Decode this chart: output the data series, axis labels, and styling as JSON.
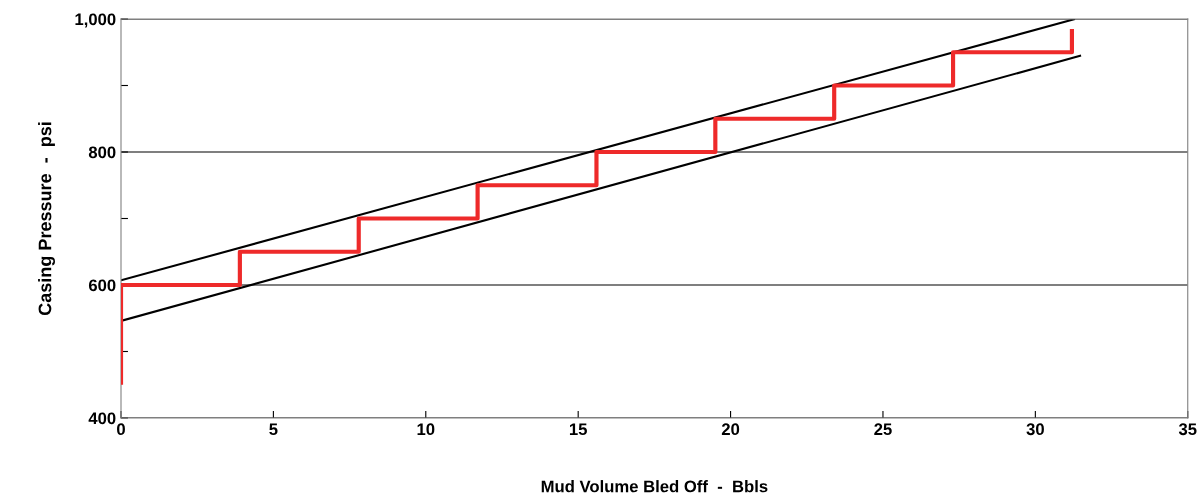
{
  "chart_data": {
    "type": "line",
    "xlabel": "Mud Volume Bled Off  -  Bbls",
    "ylabel": "Casing Pressure  -  psi",
    "xlim": [
      0,
      35
    ],
    "xticks": [
      0,
      5,
      10,
      15,
      20,
      25,
      30,
      35
    ],
    "ylim": [
      400,
      1000
    ],
    "yticks": [
      {
        "value": 400,
        "label": "400"
      },
      {
        "value": 500,
        "label": null
      },
      {
        "value": 600,
        "label": "600"
      },
      {
        "value": 700,
        "label": null
      },
      {
        "value": 800,
        "label": "800"
      },
      {
        "value": 900,
        "label": null
      },
      {
        "value": 1000,
        "label": "1,000"
      }
    ],
    "grid": "y",
    "series": [
      {
        "color": "#ee2a2a",
        "x": [
          0,
          0,
          3.9,
          3.9,
          7.8,
          7.8,
          11.7,
          11.7,
          15.6,
          15.6,
          19.5,
          19.5,
          23.4,
          23.4,
          27.3,
          27.3,
          31.2,
          31.2
        ],
        "values": [
          450,
          600,
          600,
          650,
          650,
          700,
          700,
          750,
          750,
          800,
          800,
          850,
          850,
          900,
          900,
          950,
          950,
          985
        ]
      },
      {
        "color": "#000000",
        "x": [
          0,
          31.3
        ],
        "values": [
          607,
          1000
        ]
      },
      {
        "color": "#000000",
        "x": [
          0,
          31.5
        ],
        "values": [
          546,
          945
        ]
      }
    ]
  }
}
